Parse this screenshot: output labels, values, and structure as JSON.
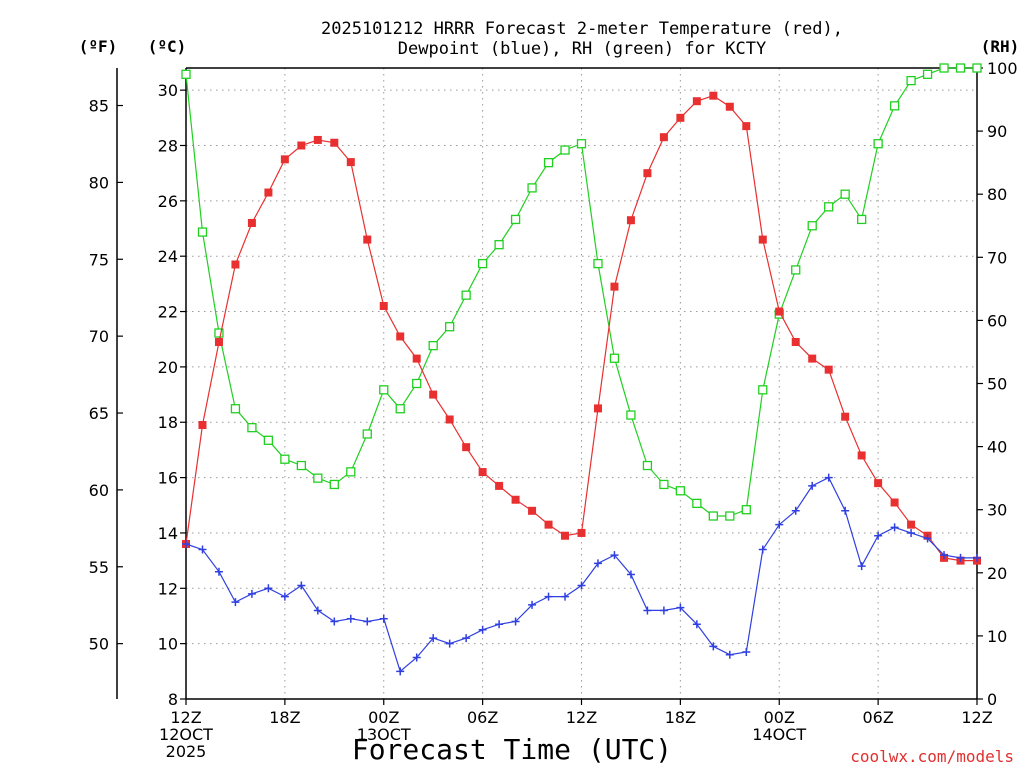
{
  "chart_data": {
    "type": "line",
    "title_line1": "2025101212 HRRR Forecast 2-meter Temperature (red),",
    "title_line2": "Dewpoint (blue), RH (green) for KCTY",
    "xlabel": "Forecast Time (UTC)",
    "credit": "coolwx.com/models",
    "units": {
      "left_outer": "(ºF)",
      "left_inner": "(ºC)",
      "right": "(RH)"
    },
    "x_range": [
      0,
      48
    ],
    "x_ticks": [
      {
        "x": 0,
        "lines": [
          "12Z",
          "12OCT",
          "2025"
        ]
      },
      {
        "x": 6,
        "lines": [
          "18Z"
        ]
      },
      {
        "x": 12,
        "lines": [
          "00Z",
          "13OCT"
        ]
      },
      {
        "x": 18,
        "lines": [
          "06Z"
        ]
      },
      {
        "x": 24,
        "lines": [
          "12Z"
        ]
      },
      {
        "x": 30,
        "lines": [
          "18Z"
        ]
      },
      {
        "x": 36,
        "lines": [
          "00Z",
          "14OCT"
        ]
      },
      {
        "x": 42,
        "lines": [
          "06Z"
        ]
      },
      {
        "x": 48,
        "lines": [
          "12Z"
        ]
      }
    ],
    "celsius_range": [
      8,
      30.8
    ],
    "celsius_ticks": [
      "8",
      "10",
      "12",
      "14",
      "16",
      "18",
      "20",
      "22",
      "24",
      "26",
      "28",
      "30"
    ],
    "fahrenheit_ticks": [
      "50",
      "55",
      "60",
      "65",
      "70",
      "75",
      "80",
      "85"
    ],
    "rh_range": [
      0,
      100
    ],
    "rh_ticks": [
      "0",
      "10",
      "20",
      "30",
      "40",
      "50",
      "60",
      "70",
      "80",
      "90",
      "100"
    ],
    "series": [
      {
        "name": "Temperature",
        "units": "C",
        "color": "#e83030",
        "marker": "filled-square",
        "values": [
          13.6,
          17.9,
          20.9,
          23.7,
          25.2,
          26.3,
          27.5,
          28.0,
          28.2,
          28.1,
          27.4,
          24.6,
          22.2,
          21.1,
          20.3,
          19.0,
          18.1,
          17.1,
          16.2,
          15.7,
          15.2,
          14.8,
          14.3,
          13.9,
          14.0,
          18.5,
          22.9,
          25.3,
          27.0,
          28.3,
          29.0,
          29.6,
          29.8,
          29.4,
          28.7,
          24.6,
          22.0,
          20.9,
          20.3,
          19.9,
          18.2,
          16.8,
          15.8,
          15.1,
          14.3,
          13.9,
          13.1,
          13.0,
          13.0
        ]
      },
      {
        "name": "Dewpoint",
        "units": "C",
        "color": "#3040e0",
        "marker": "plus",
        "values": [
          13.6,
          13.4,
          12.6,
          11.5,
          11.8,
          12.0,
          11.7,
          12.1,
          11.2,
          10.8,
          10.9,
          10.8,
          10.9,
          9.0,
          9.5,
          10.2,
          10.0,
          10.2,
          10.5,
          10.7,
          10.8,
          11.4,
          11.7,
          11.7,
          12.1,
          12.9,
          13.2,
          12.5,
          11.2,
          11.2,
          11.3,
          10.7,
          9.9,
          9.6,
          9.7,
          13.4,
          14.3,
          14.8,
          15.7,
          16.0,
          14.8,
          12.8,
          13.9,
          14.2,
          14.0,
          13.8,
          13.2,
          13.1,
          13.1
        ]
      },
      {
        "name": "Relative Humidity",
        "units": "%",
        "color": "#20d020",
        "marker": "open-square",
        "values": [
          99,
          74,
          58,
          46,
          43,
          41,
          38,
          37,
          35,
          34,
          36,
          42,
          49,
          46,
          50,
          56,
          59,
          64,
          69,
          72,
          76,
          81,
          85,
          87,
          88,
          69,
          54,
          45,
          37,
          34,
          33,
          31,
          29,
          29,
          30,
          49,
          61,
          68,
          75,
          78,
          80,
          76,
          88,
          94,
          98,
          99,
          100,
          100,
          100
        ]
      }
    ]
  }
}
